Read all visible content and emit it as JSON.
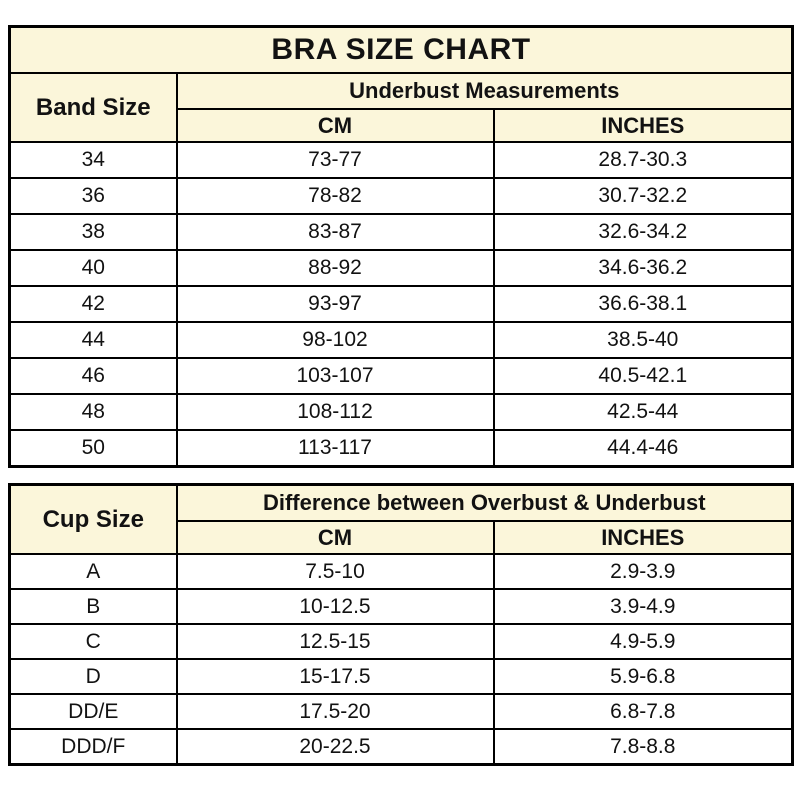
{
  "title": "BRA SIZE CHART",
  "colors": {
    "header_bg": "#FBF6DA",
    "border": "#000000",
    "text": "#121212",
    "row_bg": "#FFFFFF"
  },
  "band_table": {
    "row_header": "Band Size",
    "group_header": "Underbust Measurements",
    "col_cm": "CM",
    "col_inches": "INCHES",
    "rows": [
      {
        "band": "34",
        "cm": "73-77",
        "inches": "28.7-30.3"
      },
      {
        "band": "36",
        "cm": "78-82",
        "inches": "30.7-32.2"
      },
      {
        "band": "38",
        "cm": "83-87",
        "inches": "32.6-34.2"
      },
      {
        "band": "40",
        "cm": "88-92",
        "inches": "34.6-36.2"
      },
      {
        "band": "42",
        "cm": "93-97",
        "inches": "36.6-38.1"
      },
      {
        "band": "44",
        "cm": "98-102",
        "inches": "38.5-40"
      },
      {
        "band": "46",
        "cm": "103-107",
        "inches": "40.5-42.1"
      },
      {
        "band": "48",
        "cm": "108-112",
        "inches": "42.5-44"
      },
      {
        "band": "50",
        "cm": "113-117",
        "inches": "44.4-46"
      }
    ]
  },
  "cup_table": {
    "row_header": "Cup Size",
    "group_header": "Difference between Overbust & Underbust",
    "col_cm": "CM",
    "col_inches": "INCHES",
    "rows": [
      {
        "cup": "A",
        "cm": "7.5-10",
        "inches": "2.9-3.9"
      },
      {
        "cup": "B",
        "cm": "10-12.5",
        "inches": "3.9-4.9"
      },
      {
        "cup": "C",
        "cm": "12.5-15",
        "inches": "4.9-5.9"
      },
      {
        "cup": "D",
        "cm": "15-17.5",
        "inches": "5.9-6.8"
      },
      {
        "cup": "DD/E",
        "cm": "17.5-20",
        "inches": "6.8-7.8"
      },
      {
        "cup": "DDD/F",
        "cm": "20-22.5",
        "inches": "7.8-8.8"
      }
    ]
  },
  "chart_data": [
    {
      "type": "table",
      "title": "BRA SIZE CHART",
      "group_header": "Underbust Measurements",
      "columns": [
        "Band Size",
        "CM",
        "INCHES"
      ],
      "rows": [
        [
          "34",
          "73-77",
          "28.7-30.3"
        ],
        [
          "36",
          "78-82",
          "30.7-32.2"
        ],
        [
          "38",
          "83-87",
          "32.6-34.2"
        ],
        [
          "40",
          "88-92",
          "34.6-36.2"
        ],
        [
          "42",
          "93-97",
          "36.6-38.1"
        ],
        [
          "44",
          "98-102",
          "38.5-40"
        ],
        [
          "46",
          "103-107",
          "40.5-42.1"
        ],
        [
          "48",
          "108-112",
          "42.5-44"
        ],
        [
          "50",
          "113-117",
          "44.4-46"
        ]
      ]
    },
    {
      "type": "table",
      "group_header": "Difference between Overbust & Underbust",
      "columns": [
        "Cup Size",
        "CM",
        "INCHES"
      ],
      "rows": [
        [
          "A",
          "7.5-10",
          "2.9-3.9"
        ],
        [
          "B",
          "10-12.5",
          "3.9-4.9"
        ],
        [
          "C",
          "12.5-15",
          "4.9-5.9"
        ],
        [
          "D",
          "15-17.5",
          "5.9-6.8"
        ],
        [
          "DD/E",
          "17.5-20",
          "6.8-7.8"
        ],
        [
          "DDD/F",
          "20-22.5",
          "7.8-8.8"
        ]
      ]
    }
  ]
}
